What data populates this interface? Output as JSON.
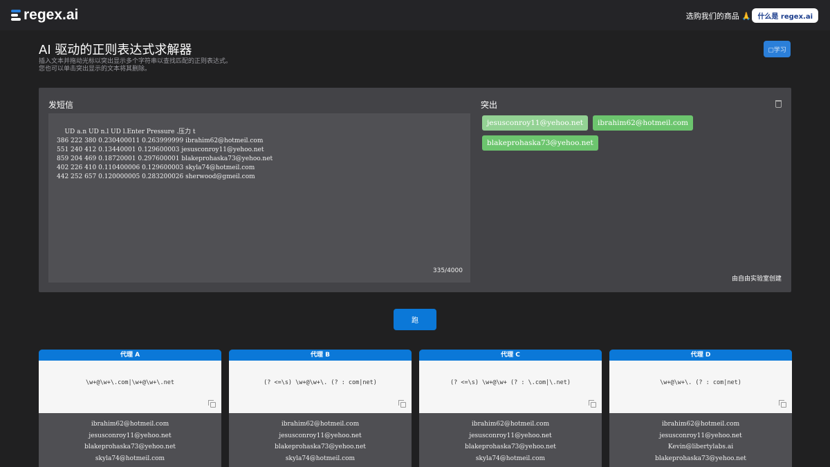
{
  "header": {
    "logo": "regex.ai",
    "shop": "选购我们的商品 🙏",
    "whatis": "什么是 regex.ai"
  },
  "intro": {
    "title": "AI 驱动的正则表达式求解器",
    "line1": "插入文本并拖动光标以突出显示多个字符串以查找匹配的正则表达式。",
    "line2": "您也可以单击突出显示的文本将其删除。",
    "learn": "▢学习"
  },
  "input": {
    "label": "发短信",
    "text": "UD a.n UD n.l UD l.Enter Pressure .压力 t\n386 222 380 0.230400011 0.263999999 ibrahim62@hotmeil.com\n551 240 412 0.13440001 0.129600003 jesusconroy11@yehoo.net\n859 204 469 0.18720001 0.297600001 blakeprohaska73@yehoo.net\n402 226 410 0.110400006 0.129600003 skyla74@hotmeil.com\n442 252 657 0.120000005 0.283200026 sherwood@gmeil.com",
    "count": "335/4000"
  },
  "highlights": {
    "label": "突出",
    "items": [
      "jesusconroy11@yehoo.net",
      "ibrahim62@hotmeil.com",
      "blakeprohaska73@yehoo.net"
    ],
    "credit": "由自由实验室创建"
  },
  "run": "跑",
  "colors": {
    "accent": "#0b78d8",
    "chip": "#6cc56e"
  },
  "agents": [
    {
      "name": "代理 A",
      "regex": "\\w+@\\w+\\.com|\\w+@\\w+\\.net",
      "matches": [
        "ibrahim62@hotmeil.com",
        "jesusconroy11@yehoo.net",
        "blakeprohaska73@yehoo.net",
        "skyla74@hotmeil.com"
      ]
    },
    {
      "name": "代理 B",
      "regex": "(? <=\\s) \\w+@\\w+\\. (? : com|net)",
      "matches": [
        "ibrahim62@hotmeil.com",
        "jesusconroy11@yehoo.net",
        "blakeprohaska73@yehoo.net",
        "skyla74@hotmeil.com"
      ]
    },
    {
      "name": "代理 C",
      "regex": "(? <=\\s) \\w+@\\w+ (? : \\.com|\\.net)",
      "matches": [
        "ibrahim62@hotmeil.com",
        "jesusconroy11@yehoo.net",
        "blakeprohaska73@yehoo.net",
        "skyla74@hotmeil.com"
      ]
    },
    {
      "name": "代理 D",
      "regex": "\\w+@\\w+\\. (? : com|net)",
      "matches": [
        "ibrahim62@hotmeil.com",
        "jesusconroy11@yehoo.net",
        "Kevin@libertylabs.ai",
        "blakeprohaska73@yehoo.net"
      ]
    }
  ]
}
